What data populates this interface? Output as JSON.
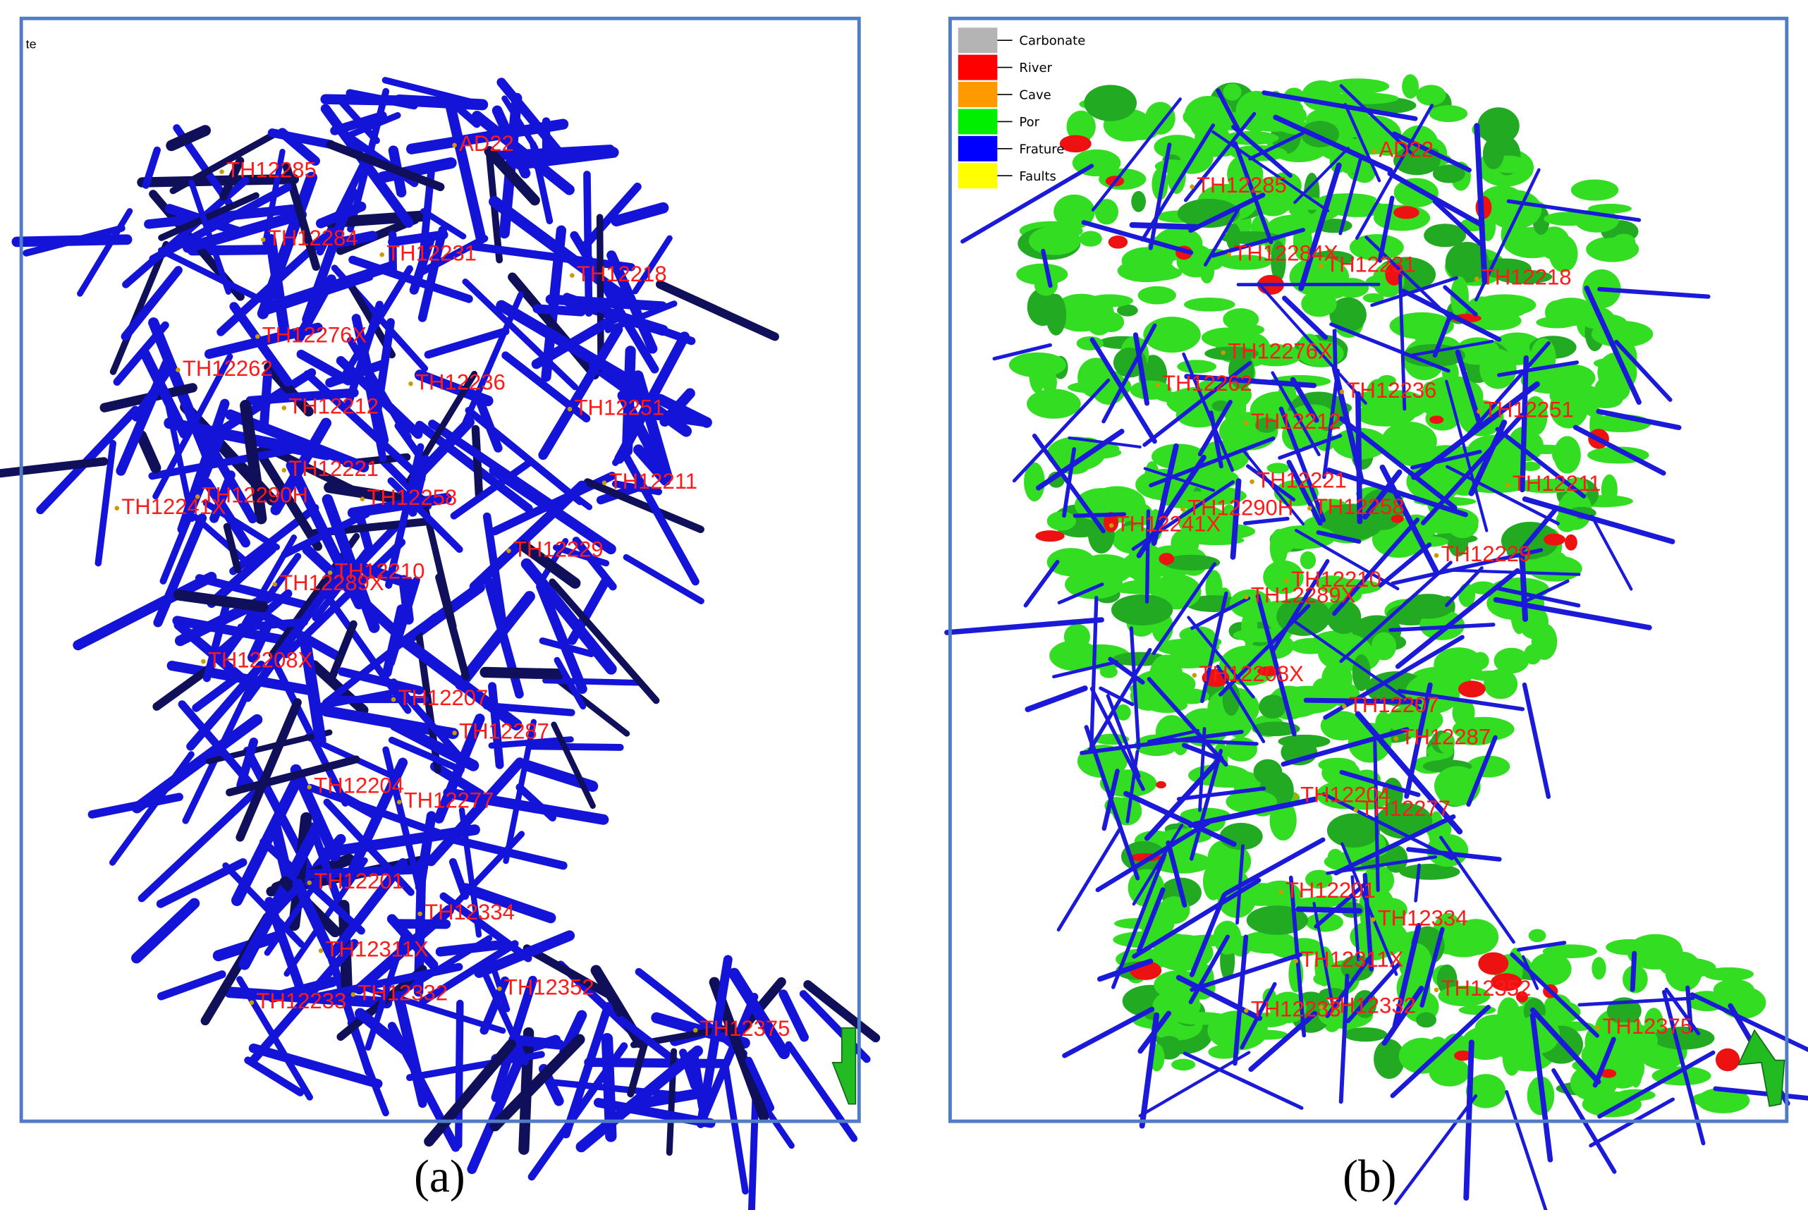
{
  "panel_a": {
    "corner_text": "te",
    "well_labels": [
      "AD22",
      "TH12285",
      "TH12284",
      "TH12231",
      "TH12218",
      "TH12276X",
      "TH12262",
      "TH12236",
      "TH12212",
      "TH12251",
      "TH12211",
      "TH12221",
      "TH12290H",
      "TH12258",
      "TH12241X",
      "TH12229",
      "TH12210",
      "TH12289X",
      "TH12208X",
      "TH12207",
      "TH12287",
      "TH12204",
      "TH12277",
      "TH12201",
      "TH12334",
      "TH12311X",
      "TH12233",
      "TH12332",
      "TH12352",
      "TH12375"
    ]
  },
  "panel_b": {
    "legend": [
      {
        "label": "Carbonate",
        "color": "#b4b4b4"
      },
      {
        "label": "River",
        "color": "#ff0000"
      },
      {
        "label": "Cave",
        "color": "#ff9900"
      },
      {
        "label": "Por",
        "color": "#00ee00"
      },
      {
        "label": "Frature",
        "color": "#0000ff"
      },
      {
        "label": "Faults",
        "color": "#ffff00"
      }
    ],
    "well_labels": [
      "AD22",
      "TH12285",
      "TH12284X",
      "TH12231",
      "TH12218",
      "TH12276X",
      "TH12262",
      "TH12236",
      "TH12212",
      "TH12251",
      "TH12211",
      "TH12221",
      "TH12290H",
      "TH12258",
      "TH12241X",
      "TH12229",
      "TH12210",
      "TH12289X",
      "TH12208X",
      "TH12207",
      "TH12287",
      "TH12204",
      "TH12277",
      "TH12201",
      "TH12334",
      "TH12311X",
      "TH12233",
      "TH12332",
      "TH12352",
      "TH12375"
    ]
  },
  "captions": [
    "(a)",
    "(b)"
  ]
}
